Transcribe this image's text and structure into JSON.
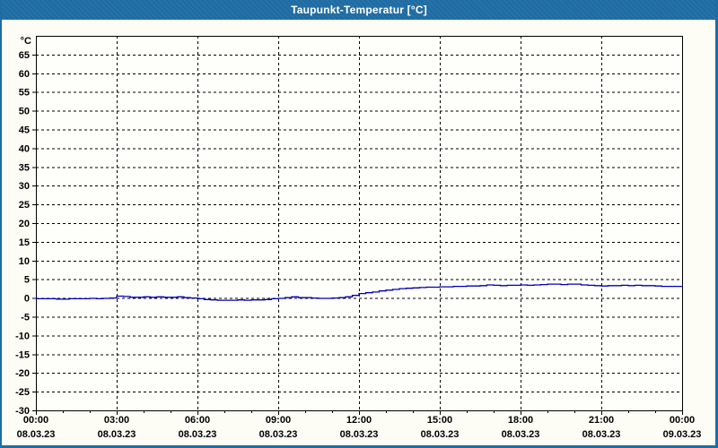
{
  "window": {
    "title_bar": {
      "label": "Taupunkt-Temperatur [°C]"
    }
  },
  "colors": {
    "titlebar_bg": "#1e6ca3",
    "frame": "#1e6ca3",
    "content_bg": "#fdfdf6",
    "plot_bg": "#fefefb",
    "grid": "#000000",
    "axis": "#000000",
    "series_line": "#0000b4",
    "title_text": "#ffffff",
    "label_text": "#000000"
  },
  "chart_data": {
    "type": "line",
    "title": "Taupunkt-Temperatur [°C]",
    "ylabel_unit": "°C",
    "ylim": [
      -30,
      70
    ],
    "ytick_step": 5,
    "ytick_values": [
      -30,
      -25,
      -20,
      -15,
      -10,
      -5,
      0,
      5,
      10,
      15,
      20,
      25,
      30,
      35,
      40,
      45,
      50,
      55,
      60,
      65
    ],
    "grid": "dashed",
    "legend": "none",
    "x_axis": {
      "range_hours": [
        0,
        24
      ],
      "major_tick_hours": 3,
      "minor_tick_hours": 1,
      "ticks": [
        {
          "time": "00:00",
          "date": "08.03.23"
        },
        {
          "time": "03:00",
          "date": "08.03.23"
        },
        {
          "time": "06:00",
          "date": "08.03.23"
        },
        {
          "time": "09:00",
          "date": "08.03.23"
        },
        {
          "time": "12:00",
          "date": "08.03.23"
        },
        {
          "time": "15:00",
          "date": "08.03.23"
        },
        {
          "time": "18:00",
          "date": "08.03.23"
        },
        {
          "time": "21:00",
          "date": "08.03.23"
        },
        {
          "time": "00:00",
          "date": "09.03.23"
        }
      ]
    },
    "series": [
      {
        "name": "Taupunkt-Temperatur",
        "color": "#0000b4",
        "x_hours": [
          0,
          0.25,
          0.5,
          0.75,
          1,
          1.25,
          1.5,
          1.75,
          2,
          2.25,
          2.5,
          2.75,
          3,
          3.25,
          3.5,
          3.75,
          4,
          4.25,
          4.5,
          4.75,
          5,
          5.25,
          5.5,
          5.75,
          6,
          6.25,
          6.5,
          6.75,
          7,
          7.25,
          7.5,
          7.75,
          8,
          8.25,
          8.5,
          8.75,
          9,
          9.25,
          9.5,
          9.75,
          10,
          10.25,
          10.5,
          10.75,
          11,
          11.25,
          11.5,
          11.75,
          12,
          12.25,
          12.5,
          12.75,
          13,
          13.25,
          13.5,
          13.75,
          14,
          14.25,
          14.5,
          14.75,
          15,
          15.25,
          15.5,
          15.75,
          16,
          16.25,
          16.5,
          16.75,
          17,
          17.25,
          17.5,
          17.75,
          18,
          18.25,
          18.5,
          18.75,
          19,
          19.25,
          19.5,
          19.75,
          20,
          20.25,
          20.5,
          20.75,
          21,
          21.25,
          21.5,
          21.75,
          22,
          22.25,
          22.5,
          22.75,
          23,
          23.25,
          23.5,
          23.75,
          24
        ],
        "values": [
          -0.2,
          -0.2,
          -0.2,
          -0.3,
          -0.3,
          -0.2,
          -0.2,
          -0.2,
          -0.1,
          -0.2,
          -0.1,
          0,
          0.5,
          0.4,
          0.2,
          0.2,
          0.3,
          0.2,
          0.3,
          0.2,
          0.2,
          0.3,
          0.1,
          0,
          -0.2,
          -0.4,
          -0.5,
          -0.6,
          -0.6,
          -0.6,
          -0.5,
          -0.6,
          -0.5,
          -0.5,
          -0.4,
          -0.2,
          -0.1,
          0.1,
          0.3,
          0.1,
          0.1,
          0,
          -0.1,
          -0.1,
          0,
          0.1,
          0.3,
          0.7,
          1.2,
          1.4,
          1.6,
          1.9,
          2.1,
          2.3,
          2.5,
          2.6,
          2.7,
          2.8,
          2.9,
          2.9,
          3,
          3,
          3.1,
          3.1,
          3.2,
          3.2,
          3.3,
          3.5,
          3.4,
          3.3,
          3.4,
          3.4,
          3.5,
          3.4,
          3.5,
          3.6,
          3.7,
          3.7,
          3.6,
          3.7,
          3.7,
          3.5,
          3.4,
          3.3,
          3.2,
          3.3,
          3.3,
          3.4,
          3.3,
          3.4,
          3.3,
          3.3,
          3.2,
          3.1,
          3.1,
          3.1,
          3.2
        ]
      }
    ]
  }
}
